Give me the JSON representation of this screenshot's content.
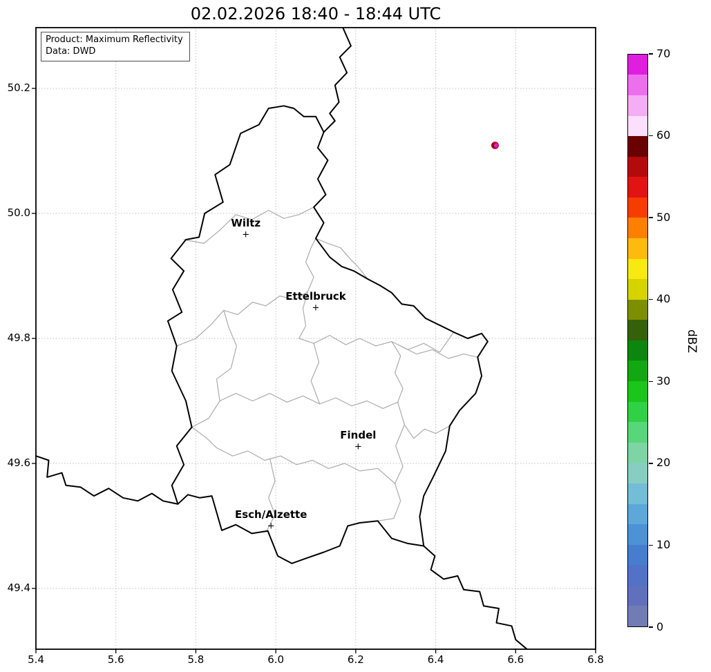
{
  "title": "02.02.2026 18:40 - 18:44 UTC",
  "info_box": {
    "line1": "Product: Maximum Reflectivity",
    "line2": "Data: DWD"
  },
  "axes": {
    "x_ticks": [
      "5.4",
      "5.6",
      "5.8",
      "6.0",
      "6.2",
      "6.4",
      "6.6",
      "6.8"
    ],
    "y_ticks": [
      "49.4",
      "49.6",
      "49.8",
      "50.0",
      "50.2"
    ],
    "x_range": [
      5.4,
      6.8
    ],
    "y_range": [
      49.3028,
      50.2972
    ]
  },
  "colorbar": {
    "label": "dBZ",
    "min": 0,
    "max": 70,
    "ticks": [
      0,
      10,
      20,
      30,
      40,
      50,
      60,
      70
    ],
    "segment_step": 2.5,
    "colors_bottom_to_top": [
      "#727cb4",
      "#6070bd",
      "#5172c7",
      "#467dcf",
      "#4c92d5",
      "#5da8d9",
      "#73bdd9",
      "#87cec1",
      "#7ed4a4",
      "#58d77a",
      "#2ed244",
      "#19c619",
      "#12a812",
      "#0d860d",
      "#35610a",
      "#7d8f00",
      "#d6d300",
      "#f8e913",
      "#fdbb0f",
      "#ff8000",
      "#f63d00",
      "#e11414",
      "#b30b0b",
      "#6b0000",
      "#fbdffb",
      "#f5adf5",
      "#ee6fee",
      "#df1fdf"
    ]
  },
  "cities": [
    {
      "name": "Wiltz",
      "lon": 5.925,
      "lat": 49.966
    },
    {
      "name": "Ettelbruck",
      "lon": 6.1,
      "lat": 49.849
    },
    {
      "name": "Findel",
      "lon": 6.206,
      "lat": 49.626
    },
    {
      "name": "Esch/Alzette",
      "lon": 5.988,
      "lat": 49.499
    }
  ],
  "echo": {
    "lon": 6.548,
    "lat": 50.109,
    "colors": {
      "outer": "#cf1040",
      "mid": "#8f0018",
      "core": "#e81ee8"
    }
  },
  "chart_data": {
    "type": "heatmap",
    "title": "02.02.2026 18:40 - 18:44 UTC",
    "xlabel": "",
    "ylabel": "",
    "x_ticks": [
      5.4,
      5.6,
      5.8,
      6.0,
      6.2,
      6.4,
      6.6,
      6.8
    ],
    "y_ticks": [
      49.4,
      49.6,
      49.8,
      50.0,
      50.2
    ],
    "x_range": [
      5.4,
      6.8
    ],
    "y_range": [
      49.3,
      50.3
    ],
    "grid": true,
    "legend_position": "colorbar-right",
    "colorbar": {
      "label": "dBZ",
      "range": [
        0,
        70
      ],
      "tick_step": 10
    },
    "annotations": [
      "Product: Maximum Reflectivity",
      "Data: DWD"
    ],
    "data_points": [
      {
        "lon": 6.548,
        "lat": 50.109,
        "value_dbz_approx": 60,
        "note": "single small convective cell, red ring with magenta core"
      }
    ],
    "city_markers": [
      {
        "name": "Wiltz",
        "lon": 5.925,
        "lat": 49.966
      },
      {
        "name": "Ettelbruck",
        "lon": 6.1,
        "lat": 49.849
      },
      {
        "name": "Findel",
        "lon": 6.206,
        "lat": 49.626
      },
      {
        "name": "Esch/Alzette",
        "lon": 5.988,
        "lat": 49.499
      }
    ]
  },
  "map": {
    "country_borders": [
      [
        [
          6.02,
          50.172
        ],
        [
          6.045,
          50.168
        ],
        [
          6.07,
          50.155
        ],
        [
          6.1,
          50.155
        ],
        [
          6.12,
          50.13
        ],
        [
          6.105,
          50.105
        ],
        [
          6.13,
          50.085
        ],
        [
          6.105,
          50.055
        ],
        [
          6.125,
          50.03
        ],
        [
          6.095,
          50.01
        ],
        [
          6.12,
          49.985
        ],
        [
          6.1,
          49.96
        ],
        [
          6.135,
          49.93
        ],
        [
          6.165,
          49.915
        ],
        [
          6.195,
          49.908
        ],
        [
          6.23,
          49.895
        ],
        [
          6.26,
          49.885
        ],
        [
          6.29,
          49.873
        ],
        [
          6.315,
          49.855
        ],
        [
          6.345,
          49.852
        ],
        [
          6.375,
          49.832
        ],
        [
          6.42,
          49.818
        ],
        [
          6.445,
          49.81
        ],
        [
          6.48,
          49.8
        ],
        [
          6.515,
          49.808
        ],
        [
          6.53,
          49.795
        ],
        [
          6.505,
          49.77
        ],
        [
          6.515,
          49.74
        ],
        [
          6.5,
          49.712
        ],
        [
          6.46,
          49.685
        ],
        [
          6.435,
          49.66
        ],
        [
          6.425,
          49.62
        ],
        [
          6.395,
          49.58
        ],
        [
          6.37,
          49.548
        ],
        [
          6.36,
          49.515
        ],
        [
          6.37,
          49.468
        ],
        [
          6.33,
          49.472
        ],
        [
          6.29,
          49.48
        ],
        [
          6.255,
          49.508
        ],
        [
          6.21,
          49.505
        ],
        [
          6.18,
          49.5
        ],
        [
          6.16,
          49.468
        ],
        [
          6.12,
          49.458
        ],
        [
          6.075,
          49.448
        ],
        [
          6.04,
          49.44
        ],
        [
          6.005,
          49.452
        ],
        [
          5.98,
          49.492
        ],
        [
          5.94,
          49.488
        ],
        [
          5.9,
          49.502
        ],
        [
          5.865,
          49.493
        ],
        [
          5.84,
          49.548
        ],
        [
          5.81,
          49.545
        ],
        [
          5.78,
          49.55
        ],
        [
          5.755,
          49.535
        ],
        [
          5.74,
          49.565
        ],
        [
          5.77,
          49.598
        ],
        [
          5.752,
          49.628
        ],
        [
          5.79,
          49.658
        ],
        [
          5.775,
          49.7
        ],
        [
          5.74,
          49.748
        ],
        [
          5.752,
          49.788
        ],
        [
          5.73,
          49.828
        ],
        [
          5.765,
          49.842
        ],
        [
          5.742,
          49.878
        ],
        [
          5.77,
          49.908
        ],
        [
          5.738,
          49.928
        ],
        [
          5.775,
          49.958
        ],
        [
          5.808,
          49.962
        ],
        [
          5.822,
          50.0
        ],
        [
          5.868,
          50.018
        ],
        [
          5.848,
          50.062
        ],
        [
          5.885,
          50.078
        ],
        [
          5.912,
          50.128
        ],
        [
          5.958,
          50.142
        ],
        [
          5.982,
          50.168
        ],
        [
          6.02,
          50.172
        ]
      ],
      [
        [
          6.168,
          50.297
        ],
        [
          6.188,
          50.268
        ],
        [
          6.16,
          50.25
        ],
        [
          6.178,
          50.225
        ],
        [
          6.148,
          50.205
        ],
        [
          6.158,
          50.178
        ],
        [
          6.135,
          50.16
        ],
        [
          6.148,
          50.148
        ],
        [
          6.12,
          50.13
        ]
      ],
      [
        [
          6.37,
          49.468
        ],
        [
          6.398,
          49.452
        ],
        [
          6.388,
          49.43
        ],
        [
          6.42,
          49.415
        ],
        [
          6.455,
          49.42
        ],
        [
          6.47,
          49.398
        ],
        [
          6.51,
          49.395
        ],
        [
          6.52,
          49.372
        ],
        [
          6.558,
          49.368
        ],
        [
          6.552,
          49.345
        ],
        [
          6.59,
          49.34
        ],
        [
          6.6,
          49.318
        ],
        [
          6.628,
          49.303
        ]
      ],
      [
        [
          5.4,
          49.612
        ],
        [
          5.432,
          49.605
        ],
        [
          5.428,
          49.578
        ],
        [
          5.465,
          49.585
        ],
        [
          5.475,
          49.565
        ],
        [
          5.512,
          49.562
        ],
        [
          5.545,
          49.548
        ],
        [
          5.582,
          49.56
        ],
        [
          5.618,
          49.545
        ],
        [
          5.655,
          49.54
        ],
        [
          5.69,
          49.552
        ],
        [
          5.718,
          49.54
        ],
        [
          5.755,
          49.535
        ]
      ]
    ],
    "district_borders": [
      [
        [
          5.77,
          49.958
        ],
        [
          5.82,
          49.952
        ],
        [
          5.858,
          49.972
        ],
        [
          5.9,
          49.998
        ],
        [
          5.94,
          49.99
        ],
        [
          5.982,
          50.005
        ],
        [
          6.02,
          49.992
        ],
        [
          6.058,
          49.998
        ],
        [
          6.095,
          50.01
        ]
      ],
      [
        [
          5.752,
          49.788
        ],
        [
          5.8,
          49.8
        ],
        [
          5.838,
          49.822
        ],
        [
          5.87,
          49.845
        ],
        [
          5.905,
          49.838
        ],
        [
          5.942,
          49.858
        ],
        [
          5.975,
          49.852
        ],
        [
          6.01,
          49.868
        ],
        [
          6.048,
          49.862
        ],
        [
          6.08,
          49.875
        ]
      ],
      [
        [
          6.08,
          49.875
        ],
        [
          6.095,
          49.898
        ],
        [
          6.075,
          49.922
        ],
        [
          6.088,
          49.945
        ],
        [
          6.1,
          49.96
        ]
      ],
      [
        [
          6.08,
          49.875
        ],
        [
          6.068,
          49.848
        ],
        [
          6.075,
          49.82
        ],
        [
          6.058,
          49.8
        ]
      ],
      [
        [
          6.1,
          49.96
        ],
        [
          6.13,
          49.952
        ],
        [
          6.162,
          49.945
        ],
        [
          6.185,
          49.928
        ],
        [
          6.205,
          49.915
        ],
        [
          6.23,
          49.895
        ]
      ],
      [
        [
          6.058,
          49.8
        ],
        [
          6.095,
          49.792
        ],
        [
          6.135,
          49.805
        ],
        [
          6.175,
          49.79
        ],
        [
          6.21,
          49.8
        ],
        [
          6.25,
          49.788
        ],
        [
          6.29,
          49.795
        ],
        [
          6.33,
          49.782
        ],
        [
          6.37,
          49.792
        ],
        [
          6.41,
          49.778
        ],
        [
          6.445,
          49.81
        ]
      ],
      [
        [
          5.79,
          49.658
        ],
        [
          5.832,
          49.672
        ],
        [
          5.86,
          49.7
        ],
        [
          5.852,
          49.735
        ],
        [
          5.888,
          49.752
        ],
        [
          5.902,
          49.788
        ],
        [
          5.882,
          49.818
        ],
        [
          5.87,
          49.845
        ]
      ],
      [
        [
          5.86,
          49.7
        ],
        [
          5.9,
          49.712
        ],
        [
          5.942,
          49.7
        ],
        [
          5.985,
          49.712
        ],
        [
          6.028,
          49.698
        ],
        [
          6.068,
          49.708
        ],
        [
          6.11,
          49.695
        ],
        [
          6.15,
          49.705
        ],
        [
          6.19,
          49.692
        ],
        [
          6.228,
          49.7
        ],
        [
          6.268,
          49.688
        ],
        [
          6.305,
          49.698
        ]
      ],
      [
        [
          6.29,
          49.795
        ],
        [
          6.312,
          49.772
        ],
        [
          6.298,
          49.745
        ],
        [
          6.318,
          49.72
        ],
        [
          6.305,
          49.698
        ]
      ],
      [
        [
          6.305,
          49.698
        ],
        [
          6.322,
          49.662
        ],
        [
          6.3,
          49.628
        ],
        [
          6.318,
          49.595
        ],
        [
          6.298,
          49.568
        ],
        [
          6.312,
          49.54
        ],
        [
          6.295,
          49.512
        ],
        [
          6.255,
          49.508
        ]
      ],
      [
        [
          5.79,
          49.658
        ],
        [
          5.828,
          49.64
        ],
        [
          5.852,
          49.625
        ],
        [
          5.892,
          49.612
        ],
        [
          5.93,
          49.62
        ],
        [
          5.972,
          49.605
        ],
        [
          6.012,
          49.612
        ],
        [
          6.052,
          49.598
        ],
        [
          6.092,
          49.605
        ],
        [
          6.132,
          49.592
        ],
        [
          6.172,
          49.6
        ],
        [
          6.21,
          49.588
        ],
        [
          6.255,
          49.592
        ],
        [
          6.298,
          49.568
        ]
      ],
      [
        [
          5.985,
          49.608
        ],
        [
          5.998,
          49.572
        ],
        [
          5.982,
          49.545
        ],
        [
          5.998,
          49.518
        ],
        [
          5.978,
          49.493
        ]
      ],
      [
        [
          6.312,
          49.788
        ],
        [
          6.352,
          49.775
        ],
        [
          6.392,
          49.782
        ],
        [
          6.432,
          49.768
        ],
        [
          6.47,
          49.775
        ],
        [
          6.505,
          49.77
        ]
      ],
      [
        [
          6.095,
          49.792
        ],
        [
          6.108,
          49.762
        ],
        [
          6.088,
          49.732
        ],
        [
          6.11,
          49.695
        ]
      ],
      [
        [
          6.435,
          49.66
        ],
        [
          6.4,
          49.648
        ],
        [
          6.372,
          49.655
        ],
        [
          6.345,
          49.64
        ],
        [
          6.322,
          49.662
        ]
      ]
    ]
  }
}
